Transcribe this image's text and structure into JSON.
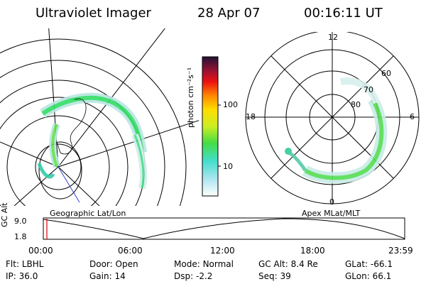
{
  "header": {
    "instrument": "Ultraviolet Imager",
    "date": "28 Apr 07",
    "time": "00:16:11 UT"
  },
  "colorbar": {
    "unit_label": "photon cm⁻²s⁻¹",
    "ticks": [
      "100",
      "10"
    ]
  },
  "left_panel": {
    "label": "Geographic Lat/Lon"
  },
  "right_panel": {
    "label": "Apex MLat/MLT",
    "mlt_labels": {
      "top": "12",
      "left": "18",
      "right": "6",
      "bottom": "0"
    },
    "lat_labels": [
      "60",
      "70",
      "80"
    ]
  },
  "timeline": {
    "axis_label": "GC Alt",
    "y_ticks": [
      "9.0",
      "1.8"
    ],
    "x_ticks": [
      "00:00",
      "06:00",
      "12:00",
      "18:00",
      "23:59"
    ]
  },
  "status": {
    "row1": [
      {
        "key": "Flt:",
        "val": "LBHL"
      },
      {
        "key": "Door:",
        "val": "Open"
      },
      {
        "key": "Mode:",
        "val": "Normal"
      },
      {
        "key": "GC Alt:",
        "val": "8.4 Re"
      },
      {
        "key": "GLat:",
        "val": "-66.1"
      }
    ],
    "row2": [
      {
        "key": "IP:",
        "val": "36.0"
      },
      {
        "key": "Gain:",
        "val": "14"
      },
      {
        "key": "Dsp:",
        "val": "-2.2"
      },
      {
        "key": "Seq:",
        "val": "39"
      },
      {
        "key": "GLon:",
        "val": "66.1"
      }
    ]
  }
}
